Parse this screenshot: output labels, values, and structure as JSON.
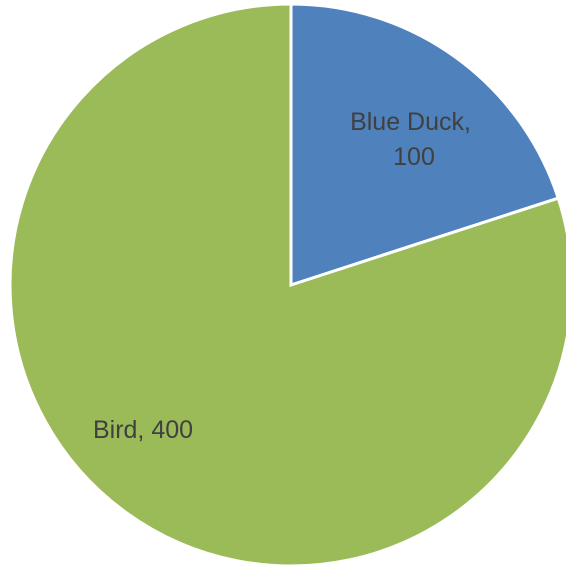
{
  "chart_data": {
    "type": "pie",
    "categories": [
      "Blue Duck",
      "Bird"
    ],
    "values": [
      100,
      400
    ],
    "colors": [
      "#4f81bd",
      "#9bbb59"
    ],
    "start_angle_deg": 0,
    "direction": "clockwise",
    "legend": "none",
    "data_labels": [
      {
        "line1": "Blue Duck,",
        "line2": "100"
      },
      {
        "line1": "Bird, 400",
        "line2": ""
      }
    ]
  }
}
